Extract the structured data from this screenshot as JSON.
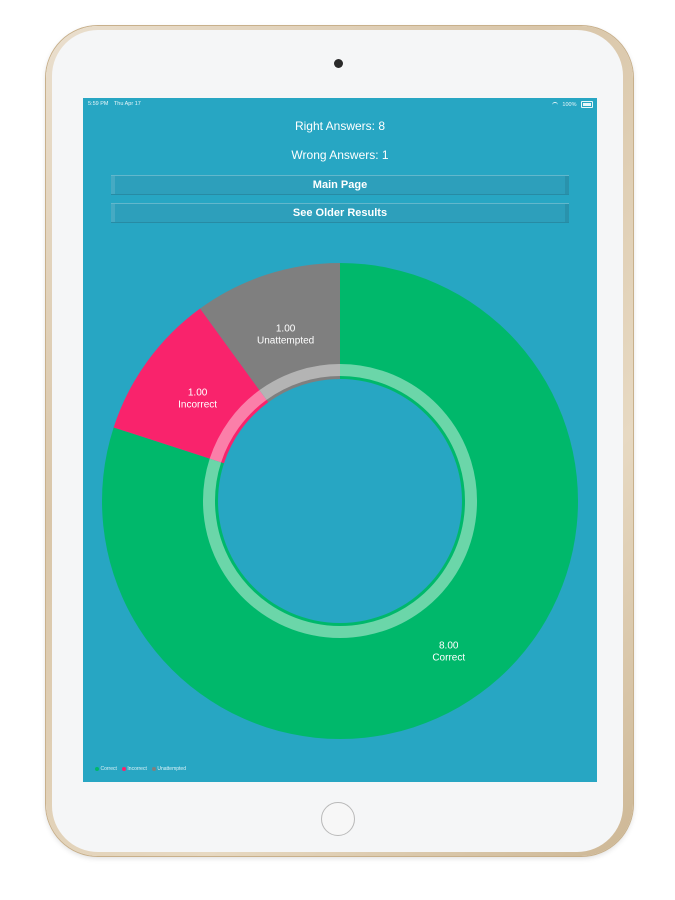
{
  "status_bar": {
    "time": "5:59 PM",
    "date": "Thu Apr 17",
    "battery": "100%"
  },
  "summary": {
    "right_answers": "Right Answers: 8",
    "wrong_answers": "Wrong Answers: 1"
  },
  "buttons": {
    "main_page": "Main Page",
    "older_results": "See Older Results"
  },
  "colors": {
    "screen_bg": "#27a6c3",
    "correct": "#00b86b",
    "incorrect": "#f9236c",
    "unattempted": "#7f7f7f"
  },
  "chart_data": {
    "type": "pie",
    "style": "donut",
    "categories": [
      "Correct",
      "Incorrect",
      "Unattempted"
    ],
    "values": [
      8,
      1,
      1
    ],
    "value_labels": [
      "8.00",
      "1.00",
      "1.00"
    ],
    "colors": [
      "#00b86b",
      "#f9236c",
      "#7f7f7f"
    ],
    "legend": {
      "position": "bottom-left",
      "entries": [
        "Correct",
        "Incorrect",
        "Unattempted"
      ]
    }
  }
}
